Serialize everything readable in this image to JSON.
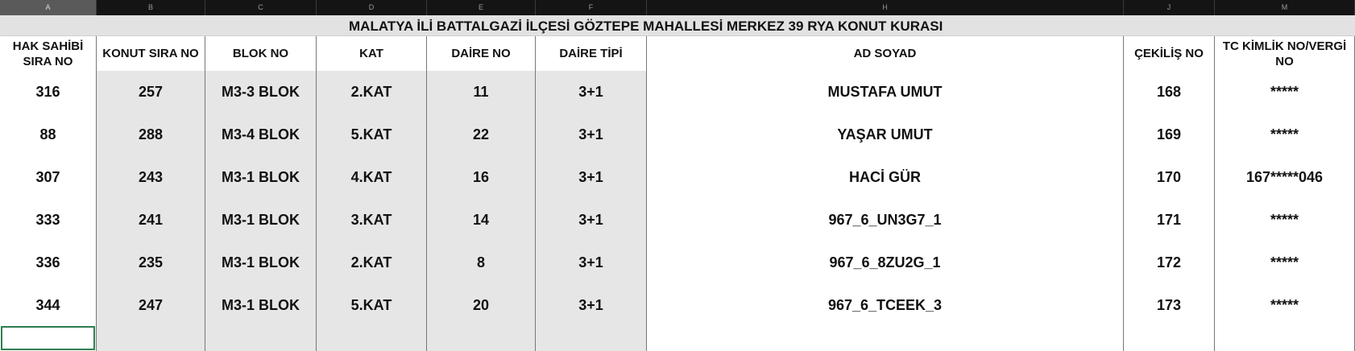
{
  "column_letters": [
    "A",
    "B",
    "C",
    "D",
    "E",
    "F",
    "H",
    "J",
    "M"
  ],
  "selected_column": "A",
  "title": "MALATYA İLİ BATTALGAZİ İLÇESİ GÖZTEPE MAHALLESİ MERKEZ 39 RYA KONUT KURASI",
  "headers": [
    "HAK SAHİBİ SIRA NO",
    "KONUT SIRA NO",
    "BLOK NO",
    "KAT",
    "DAİRE NO",
    "DAİRE TİPİ",
    "AD SOYAD",
    "ÇEKİLİŞ NO",
    "TC KİMLİK NO/VERGİ NO"
  ],
  "rows": [
    [
      "316",
      "257",
      "M3-3 BLOK",
      "2.KAT",
      "11",
      "3+1",
      "MUSTAFA UMUT",
      "168",
      "*****"
    ],
    [
      "88",
      "288",
      "M3-4 BLOK",
      "5.KAT",
      "22",
      "3+1",
      "YAŞAR UMUT",
      "169",
      "*****"
    ],
    [
      "307",
      "243",
      "M3-1 BLOK",
      "4.KAT",
      "16",
      "3+1",
      "HACİ GÜR",
      "170",
      "167*****046"
    ],
    [
      "333",
      "241",
      "M3-1 BLOK",
      "3.KAT",
      "14",
      "3+1",
      "967_6_UN3G7_1",
      "171",
      "*****"
    ],
    [
      "336",
      "235",
      "M3-1 BLOK",
      "2.KAT",
      "8",
      "3+1",
      "967_6_8ZU2G_1",
      "172",
      "*****"
    ],
    [
      "344",
      "247",
      "M3-1 BLOK",
      "5.KAT",
      "20",
      "3+1",
      "967_6_TCEEK_3",
      "173",
      "*****"
    ]
  ],
  "colors": {
    "selection": "#2e7d4f",
    "shaded_cells": "#e6e6e6",
    "column_bar": "#141414"
  }
}
